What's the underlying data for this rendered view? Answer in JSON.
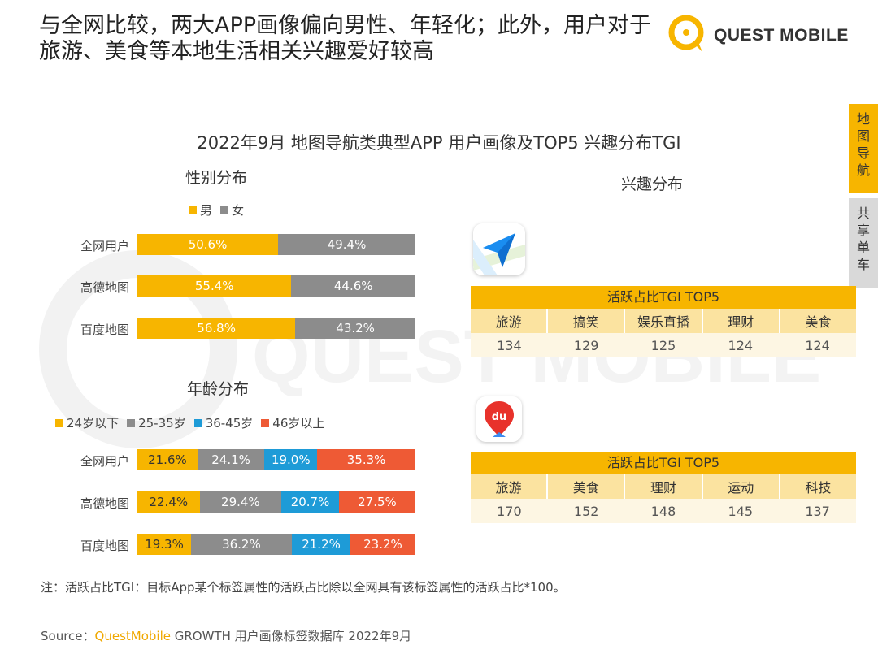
{
  "headline": "与全网比较，两大APP画像偏向男性、年轻化；此外，用户对于旅游、美食等本地生活相关兴趣爱好较高",
  "logo_text": "QUEST MOBILE",
  "side_tabs": [
    {
      "label": "地图导航",
      "chars": [
        "地",
        "图",
        "导",
        "航"
      ],
      "active": true
    },
    {
      "label": "共享单车",
      "chars": [
        "共",
        "享",
        "单",
        "车"
      ],
      "active": false
    }
  ],
  "chart_title": "2022年9月 地图导航类典型APP 用户画像及TOP5 兴趣分布TGI",
  "gender": {
    "title": "性别分布",
    "legend": [
      {
        "name": "男",
        "color": "#f7b500"
      },
      {
        "name": "女",
        "color": "#8c8c8c"
      }
    ]
  },
  "age": {
    "title": "年龄分布",
    "legend": [
      {
        "name": "24岁以下",
        "color": "#f7b500"
      },
      {
        "name": "25-35岁",
        "color": "#8c8c8c"
      },
      {
        "name": "36-45岁",
        "color": "#1e9bd7"
      },
      {
        "name": "46岁以上",
        "color": "#ee5a35"
      }
    ]
  },
  "interest": {
    "title": "兴趣分布",
    "tables": [
      {
        "app_icon": "amap-paper-plane-icon",
        "header": "活跃占比TGI TOP5",
        "categories": [
          "旅游",
          "搞笑",
          "娱乐直播",
          "理财",
          "美食"
        ],
        "values": [
          "134",
          "129",
          "125",
          "124",
          "124"
        ]
      },
      {
        "app_icon": "baidu-map-du-pin-icon",
        "header": "活跃占比TGI TOP5",
        "categories": [
          "旅游",
          "美食",
          "理财",
          "运动",
          "科技"
        ],
        "values": [
          "170",
          "152",
          "148",
          "145",
          "137"
        ]
      }
    ]
  },
  "note": "注：活跃占比TGI：目标App某个标签属性的活跃占比除以全网具有该标签属性的活跃占比*100。",
  "source": {
    "prefix": "Source：",
    "brand": "QuestMobile",
    "rest": " GROWTH 用户画像标签数据库 2022年9月"
  },
  "watermark": "QUEST MOBILE",
  "chart_data": [
    {
      "type": "bar",
      "stacked": true,
      "orientation": "horizontal",
      "title": "性别分布",
      "categories": [
        "全网用户",
        "高德地图",
        "百度地图"
      ],
      "series": [
        {
          "name": "男",
          "values": [
            50.6,
            55.4,
            56.8
          ],
          "labels": [
            "50.6%",
            "55.4%",
            "56.8%"
          ],
          "color": "#f7b500",
          "text_color": "#ffffff"
        },
        {
          "name": "女",
          "values": [
            49.4,
            44.6,
            43.2
          ],
          "labels": [
            "49.4%",
            "44.6%",
            "43.2%"
          ],
          "color": "#8c8c8c",
          "text_color": "#ffffff"
        }
      ],
      "xlim": [
        0,
        100
      ],
      "legend": "top-left"
    },
    {
      "type": "bar",
      "stacked": true,
      "orientation": "horizontal",
      "title": "年龄分布",
      "categories": [
        "全网用户",
        "高德地图",
        "百度地图"
      ],
      "series": [
        {
          "name": "24岁以下",
          "values": [
            21.6,
            22.4,
            19.3
          ],
          "labels": [
            "21.6%",
            "22.4%",
            "19.3%"
          ],
          "color": "#f7b500",
          "text_color": "#333333"
        },
        {
          "name": "25-35岁",
          "values": [
            24.1,
            29.4,
            36.2
          ],
          "labels": [
            "24.1%",
            "29.4%",
            "36.2%"
          ],
          "color": "#8c8c8c",
          "text_color": "#ffffff"
        },
        {
          "name": "36-45岁",
          "values": [
            19.0,
            20.7,
            21.2
          ],
          "labels": [
            "19.0%",
            "20.7%",
            "21.2%"
          ],
          "color": "#1e9bd7",
          "text_color": "#ffffff"
        },
        {
          "name": "46岁以上",
          "values": [
            35.3,
            27.5,
            23.2
          ],
          "labels": [
            "35.3%",
            "27.5%",
            "23.2%"
          ],
          "color": "#ee5a35",
          "text_color": "#ffffff"
        }
      ],
      "xlim": [
        0,
        100
      ],
      "legend": "top-left"
    }
  ]
}
